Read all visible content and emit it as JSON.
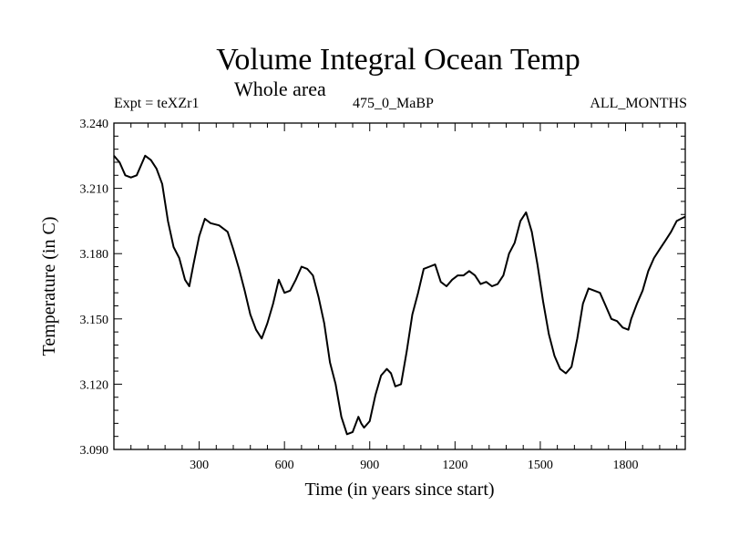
{
  "chart_data": {
    "type": "line",
    "title": "Volume Integral Ocean Temp",
    "subtitle": "Whole area",
    "annotations": {
      "experiment": "Expt = teXZr1",
      "period": "475_0_MaBP",
      "months": "ALL_MONTHS"
    },
    "xlabel": "Time (in years since start)",
    "ylabel": "Temperature (in C)",
    "xlim": [
      0,
      2010
    ],
    "ylim": [
      3.09,
      3.24
    ],
    "xticks": [
      300,
      600,
      900,
      1200,
      1500,
      1800
    ],
    "xtick_labels": [
      "300",
      "600",
      "900",
      "1200",
      "1500",
      "1800"
    ],
    "yticks": [
      3.09,
      3.12,
      3.15,
      3.18,
      3.21,
      3.24
    ],
    "ytick_labels": [
      "3.090",
      "3.120",
      "3.150",
      "3.180",
      "3.210",
      "3.240"
    ],
    "series": [
      {
        "name": "Volume Integral Ocean Temp",
        "x": [
          0,
          20,
          40,
          60,
          80,
          100,
          110,
          130,
          150,
          170,
          190,
          210,
          230,
          250,
          265,
          280,
          300,
          320,
          340,
          370,
          400,
          420,
          440,
          460,
          480,
          500,
          520,
          540,
          560,
          580,
          600,
          620,
          640,
          660,
          680,
          700,
          720,
          740,
          760,
          780,
          800,
          820,
          840,
          860,
          870,
          880,
          900,
          920,
          940,
          960,
          975,
          990,
          1010,
          1030,
          1050,
          1070,
          1090,
          1110,
          1130,
          1150,
          1170,
          1190,
          1210,
          1230,
          1250,
          1270,
          1290,
          1310,
          1330,
          1350,
          1370,
          1390,
          1410,
          1430,
          1450,
          1470,
          1490,
          1510,
          1530,
          1550,
          1570,
          1590,
          1610,
          1630,
          1650,
          1670,
          1690,
          1710,
          1730,
          1750,
          1770,
          1790,
          1810,
          1820,
          1840,
          1860,
          1880,
          1900,
          1920,
          1940,
          1960,
          1980,
          2010
        ],
        "values": [
          3.225,
          3.222,
          3.216,
          3.215,
          3.216,
          3.222,
          3.225,
          3.223,
          3.219,
          3.212,
          3.195,
          3.183,
          3.178,
          3.168,
          3.165,
          3.175,
          3.188,
          3.196,
          3.194,
          3.193,
          3.19,
          3.182,
          3.173,
          3.163,
          3.152,
          3.145,
          3.141,
          3.148,
          3.157,
          3.168,
          3.162,
          3.163,
          3.168,
          3.174,
          3.173,
          3.17,
          3.16,
          3.148,
          3.13,
          3.12,
          3.105,
          3.097,
          3.098,
          3.105,
          3.102,
          3.1,
          3.103,
          3.115,
          3.124,
          3.127,
          3.125,
          3.119,
          3.12,
          3.135,
          3.152,
          3.162,
          3.173,
          3.174,
          3.175,
          3.167,
          3.165,
          3.168,
          3.17,
          3.17,
          3.172,
          3.17,
          3.166,
          3.167,
          3.165,
          3.166,
          3.17,
          3.18,
          3.185,
          3.195,
          3.199,
          3.19,
          3.175,
          3.158,
          3.143,
          3.133,
          3.127,
          3.125,
          3.128,
          3.141,
          3.157,
          3.164,
          3.163,
          3.162,
          3.156,
          3.15,
          3.149,
          3.146,
          3.145,
          3.15,
          3.157,
          3.163,
          3.172,
          3.178,
          3.182,
          3.186,
          3.19,
          3.195,
          3.197
        ]
      }
    ]
  }
}
